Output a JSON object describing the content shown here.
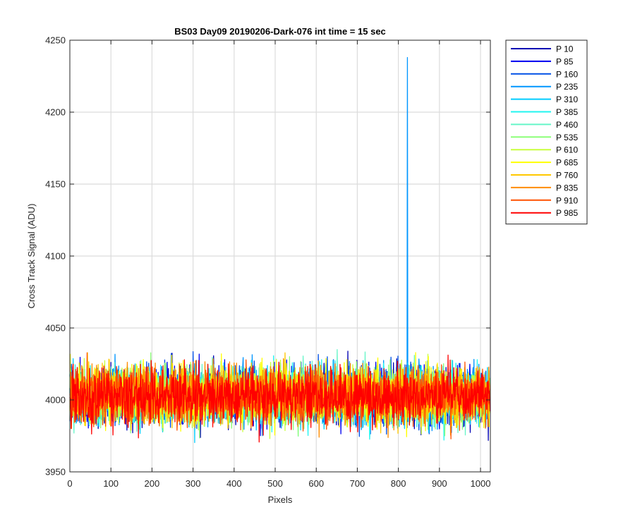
{
  "chart_data": {
    "type": "line",
    "title": "BS03 Day09 20190206-Dark-076 int time = 15 sec",
    "xlabel": "Pixels",
    "ylabel": "Cross Track Signal (ADU)",
    "xlim": [
      0,
      1024
    ],
    "ylim": [
      3950,
      4250
    ],
    "xticks": [
      0,
      100,
      200,
      300,
      400,
      500,
      600,
      700,
      800,
      900,
      1000
    ],
    "yticks": [
      3950,
      4000,
      4050,
      4100,
      4150,
      4200,
      4250
    ],
    "grid": true,
    "legend_position": "outside-top-right",
    "noise": {
      "mean": 4003,
      "typical_range": [
        3985,
        4025
      ]
    },
    "series": [
      {
        "name": "P 10",
        "color": "#0000b4"
      },
      {
        "name": "P 85",
        "color": "#0000f0"
      },
      {
        "name": "P 160",
        "color": "#0050e6"
      },
      {
        "name": "P 235",
        "color": "#0096ff",
        "spike": {
          "x": 822,
          "y": 4238
        }
      },
      {
        "name": "P 310",
        "color": "#00ccff"
      },
      {
        "name": "P 385",
        "color": "#1ff5f0"
      },
      {
        "name": "P 460",
        "color": "#66f5c8"
      },
      {
        "name": "P 535",
        "color": "#8cff78"
      },
      {
        "name": "P 610",
        "color": "#c8ff3c"
      },
      {
        "name": "P 685",
        "color": "#ffff00"
      },
      {
        "name": "P 760",
        "color": "#ffc800"
      },
      {
        "name": "P 835",
        "color": "#ff8c00"
      },
      {
        "name": "P 910",
        "color": "#ff5000"
      },
      {
        "name": "P 985",
        "color": "#ff0000"
      }
    ]
  }
}
